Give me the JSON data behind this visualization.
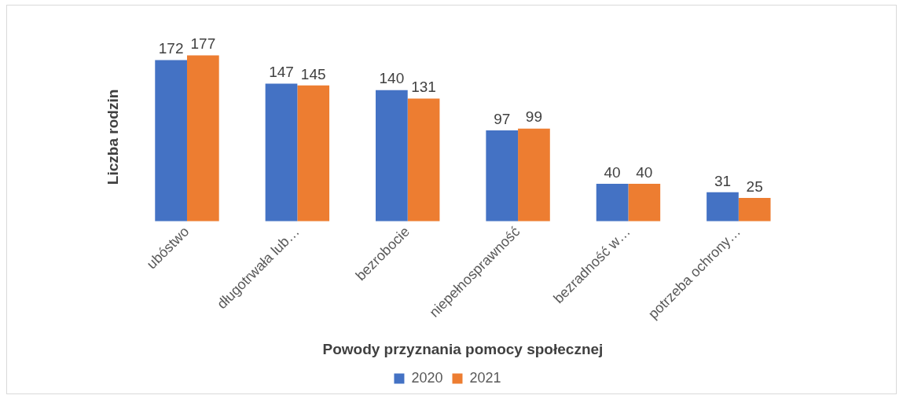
{
  "chart_data": {
    "type": "bar",
    "xlabel": "Powody przyznania pomocy społecznej",
    "ylabel": "Liczba rodzin",
    "categories": [
      "ubóstwo",
      "długotrwała lub…",
      "bezrobocie",
      "niepełnosprawność",
      "bezradność w…",
      "potrzeba ochrony…"
    ],
    "series": [
      {
        "name": "2020",
        "color": "#4472c4",
        "values": [
          172,
          147,
          140,
          97,
          40,
          31
        ]
      },
      {
        "name": "2021",
        "color": "#ed7d31",
        "values": [
          177,
          145,
          131,
          99,
          40,
          25
        ]
      }
    ],
    "data_labels": true,
    "legend": "bottom",
    "grid": false
  }
}
